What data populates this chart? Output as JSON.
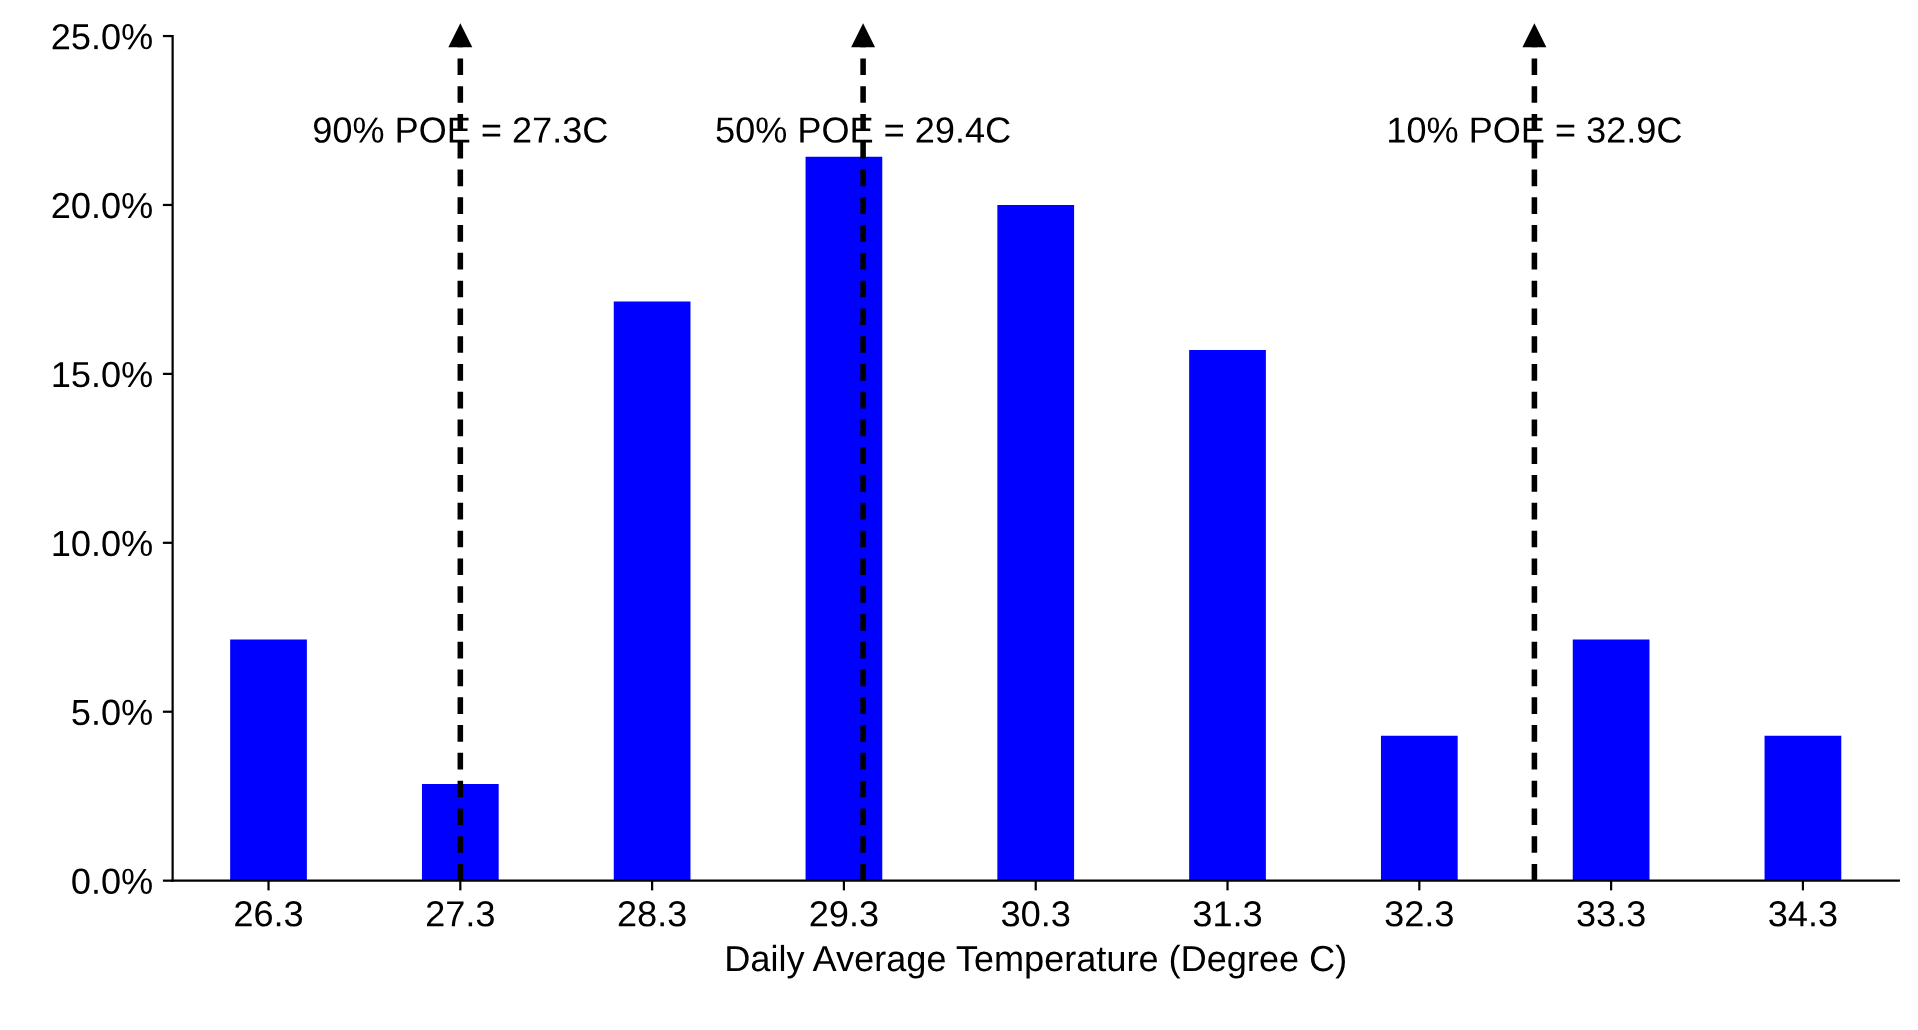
{
  "chart_data": {
    "type": "bar",
    "xlabel": "Daily Average Temperature (Degree C)",
    "x": [
      26.3,
      27.3,
      28.3,
      29.3,
      30.3,
      31.3,
      32.3,
      33.3,
      34.3
    ],
    "xlim": [
      25.8,
      34.8
    ],
    "xticks": [
      26.3,
      27.3,
      28.3,
      29.3,
      30.3,
      31.3,
      32.3,
      33.3,
      34.3
    ],
    "values": [
      7.14,
      2.86,
      17.14,
      21.43,
      20.0,
      15.71,
      4.29,
      7.14,
      4.29
    ],
    "color": "#0000ff",
    "ylim": [
      0,
      25
    ],
    "yticks": [
      {
        "value": 0,
        "label": "0.0%"
      },
      {
        "value": 5,
        "label": "5.0%"
      },
      {
        "value": 10,
        "label": "10.0%"
      },
      {
        "value": 15,
        "label": "15.0%"
      },
      {
        "value": 20,
        "label": "20.0%"
      },
      {
        "value": 25,
        "label": "25.0%"
      }
    ],
    "ref_lines": [
      {
        "axis": "x",
        "value": 27.3,
        "label": "90% POE = 27.3C",
        "color": "#000000",
        "line_style": "dashed"
      },
      {
        "axis": "x",
        "value": 29.4,
        "label": "50% POE = 29.4C",
        "color": "#000000",
        "line_style": "dashed"
      },
      {
        "axis": "x",
        "value": 32.9,
        "label": "10% POE = 32.9C",
        "color": "#000000",
        "line_style": "dashed"
      }
    ],
    "grid": false,
    "legend": false
  }
}
